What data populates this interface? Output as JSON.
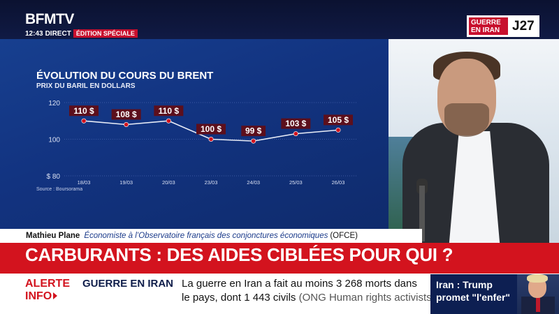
{
  "channel": {
    "logo": "BFMTV",
    "time": "12:43",
    "live": "DIRECT",
    "edition": "ÉDITION SPÉCIALE",
    "war_label_line1": "GUERRE",
    "war_label_line2": "EN IRAN",
    "war_day": "J27"
  },
  "chart_data": {
    "type": "line",
    "title": "ÉVOLUTION DU COURS DU BRENT",
    "subtitle": "PRIX DU BARIL EN DOLLARS",
    "source": "Source : Boursorama",
    "categories": [
      "18/03",
      "19/03",
      "20/03",
      "23/03",
      "24/03",
      "25/03",
      "26/03"
    ],
    "values": [
      110,
      108,
      110,
      100,
      99,
      103,
      105
    ],
    "data_labels": [
      "110 $",
      "108 $",
      "110 $",
      "100 $",
      "99 $",
      "103 $",
      "105 $"
    ],
    "y_ticks": [
      "$ 80",
      "100",
      "120"
    ],
    "y_tick_values": [
      80,
      100,
      120
    ],
    "ylim": [
      80,
      120
    ],
    "grid": true,
    "colors": {
      "line": "#e9edf7",
      "marker": "#d3131e",
      "label_bg": "#5c0f1c"
    }
  },
  "lower_third": {
    "name": "Mathieu Plane",
    "role": "Économiste à l’Observatoire français des conjonctures économiques",
    "org": "(OFCE)"
  },
  "headline": "CARBURANTS : DES AIDES CIBLÉES POUR QUI ?",
  "ticker": {
    "alert_line1": "ALERTE",
    "alert_line2": "INFO",
    "topic": "GUERRE EN IRAN",
    "line1": "La guerre en Iran a fait au moins 3 268 morts dans",
    "line2_main": "le pays, dont 1 443 civils",
    "line2_source": "(ONG Human rights activists news agency)"
  },
  "side_card": {
    "line1": "Iran : Trump",
    "line2": "promet \"l'enfer\""
  },
  "colors": {
    "brand_red": "#d3131e",
    "navy": "#0d1f52",
    "chart_blue": "#123380"
  }
}
